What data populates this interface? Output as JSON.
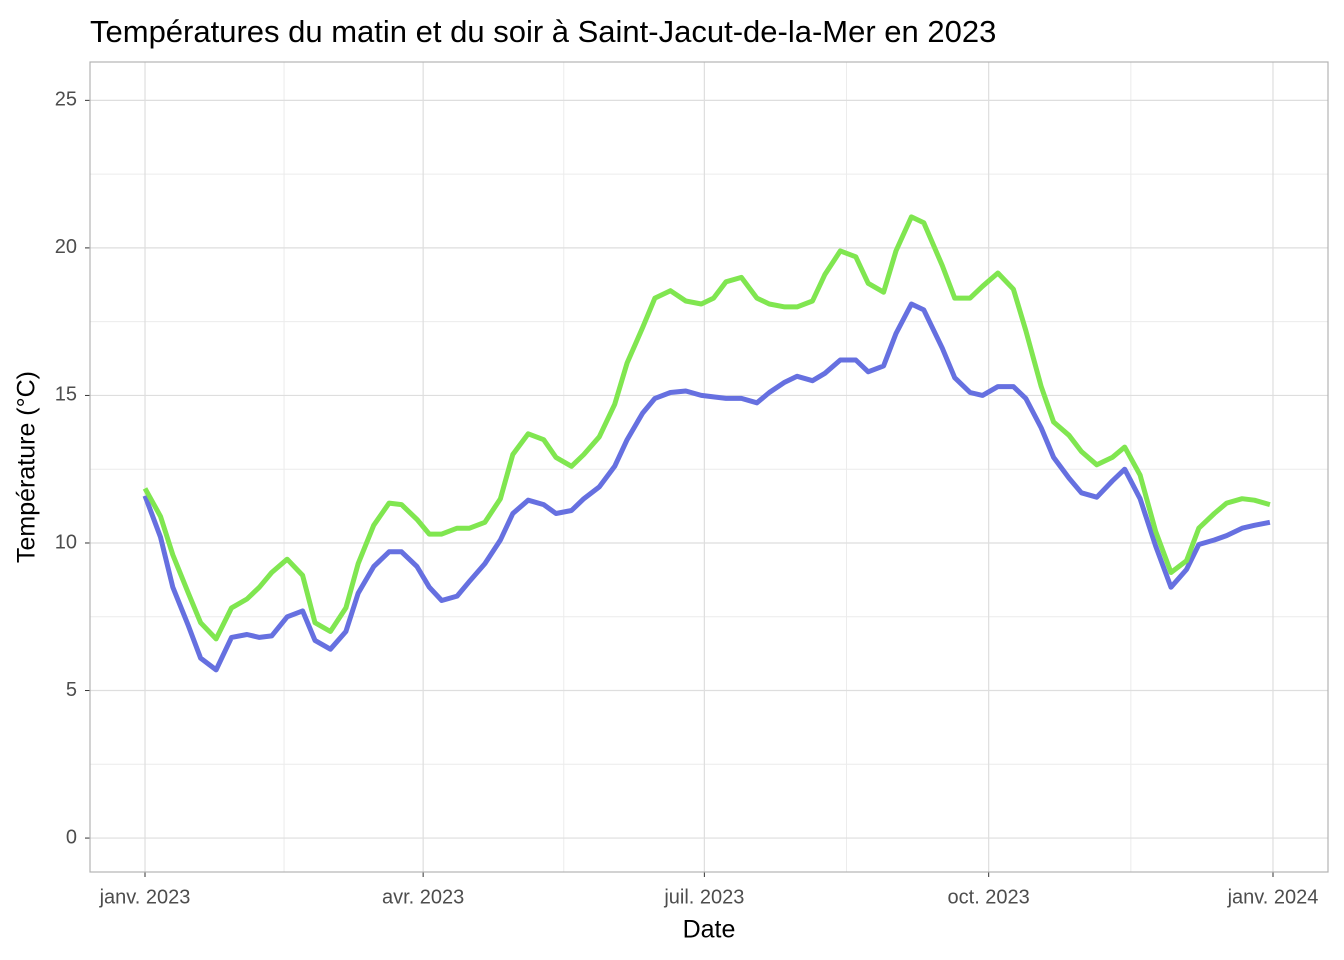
{
  "chart_data": {
    "type": "line",
    "title": "Températures du matin et du soir à Saint-Jacut-de-la-Mer en 2023",
    "x_label": "Date",
    "y_label": "Température (°C)",
    "x": [
      0,
      5,
      9,
      14,
      18,
      23,
      28,
      33,
      37,
      41,
      46,
      51,
      55,
      60,
      65,
      69,
      74,
      79,
      83,
      88,
      92,
      96,
      101,
      105,
      110,
      115,
      119,
      124,
      129,
      133,
      138,
      142,
      147,
      152,
      156,
      161,
      165,
      170,
      175,
      180,
      184,
      188,
      193,
      198,
      202,
      207,
      211,
      216,
      220,
      225,
      230,
      234,
      239,
      243,
      248,
      252,
      258,
      262,
      267,
      271,
      276,
      281,
      285,
      290,
      294,
      299,
      303,
      308,
      313,
      317,
      322,
      327,
      332,
      337,
      341,
      346,
      350,
      355,
      359,
      364
    ],
    "series": [
      {
        "color": "#6670e0",
        "values": [
          11.6,
          10.2,
          8.5,
          7.2,
          6.1,
          5.7,
          6.8,
          6.9,
          6.8,
          6.85,
          7.5,
          7.7,
          6.7,
          6.4,
          7.0,
          8.3,
          9.2,
          9.7,
          9.7,
          9.2,
          8.5,
          8.05,
          8.2,
          8.7,
          9.3,
          10.1,
          11.0,
          11.45,
          11.3,
          11.0,
          11.1,
          11.5,
          11.9,
          12.6,
          13.5,
          14.4,
          14.9,
          15.1,
          15.15,
          15.0,
          14.95,
          14.9,
          14.9,
          14.75,
          15.1,
          15.45,
          15.65,
          15.5,
          15.75,
          16.2,
          16.2,
          15.8,
          16.0,
          17.1,
          18.1,
          17.9,
          16.6,
          15.6,
          15.1,
          15.0,
          15.3,
          15.3,
          14.9,
          13.9,
          12.9,
          12.2,
          11.7,
          11.55,
          12.1,
          12.5,
          11.5,
          9.9,
          8.5,
          9.1,
          9.95,
          10.1,
          10.25,
          10.5,
          10.6,
          10.7
        ]
      },
      {
        "color": "#80e650",
        "values": [
          11.85,
          10.9,
          9.6,
          8.3,
          7.3,
          6.75,
          7.8,
          8.1,
          8.5,
          9.0,
          9.45,
          8.9,
          7.3,
          7.0,
          7.8,
          9.3,
          10.6,
          11.35,
          11.3,
          10.8,
          10.3,
          10.3,
          10.5,
          10.5,
          10.7,
          11.5,
          13.0,
          13.7,
          13.5,
          12.9,
          12.6,
          13.0,
          13.6,
          14.7,
          16.1,
          17.3,
          18.3,
          18.55,
          18.2,
          18.1,
          18.3,
          18.85,
          19.0,
          18.3,
          18.1,
          18.0,
          18.0,
          18.2,
          19.1,
          19.9,
          19.7,
          18.8,
          18.5,
          19.9,
          21.05,
          20.85,
          19.4,
          18.3,
          18.3,
          18.7,
          19.15,
          18.6,
          17.2,
          15.3,
          14.1,
          13.65,
          13.1,
          12.65,
          12.9,
          13.25,
          12.3,
          10.4,
          9.0,
          9.4,
          10.5,
          11.0,
          11.35,
          11.5,
          11.45,
          11.3
        ]
      }
    ],
    "xlim": [
      -17.8,
      382.8
    ],
    "xticks": [
      {
        "value": 0,
        "label": "janv. 2023"
      },
      {
        "value": 90,
        "label": "avr. 2023"
      },
      {
        "value": 181,
        "label": "juil. 2023"
      },
      {
        "value": 273,
        "label": "oct. 2023"
      },
      {
        "value": 365,
        "label": "janv. 2024"
      }
    ],
    "ylim": [
      -1.15,
      26.3
    ],
    "yticks": [
      0,
      5,
      10,
      15,
      20,
      25
    ],
    "grid": true
  }
}
